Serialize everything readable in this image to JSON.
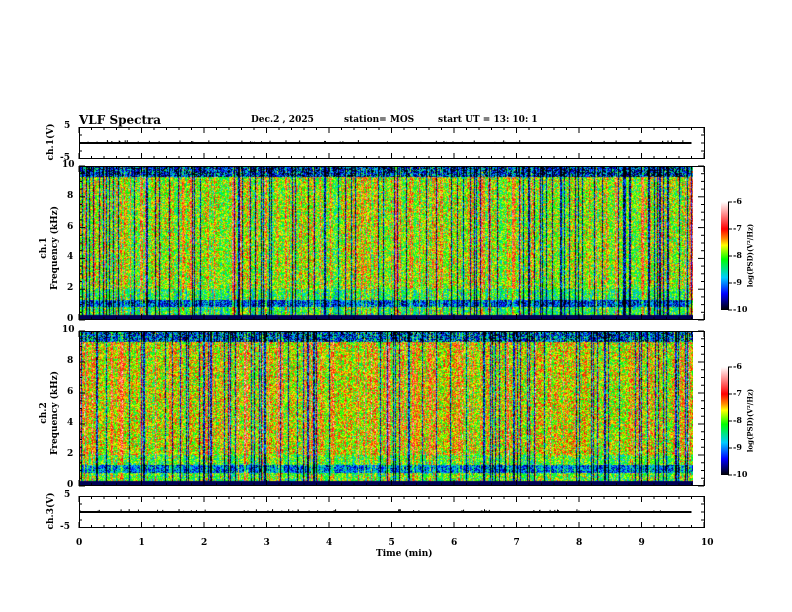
{
  "header": {
    "title": "VLF Spectra",
    "date": "Dec.2 , 2025",
    "station": "station= MOS",
    "start": "start  UT =   13: 10: 1"
  },
  "panels": {
    "ch1_wave": {
      "label": "ch.1(V)",
      "ticks": [
        "5",
        "-5"
      ]
    },
    "ch1_spec": {
      "label_ch": "ch.1",
      "label_axis": "Frequency (kHz)",
      "ticks": [
        "10",
        "8",
        "6",
        "4",
        "2",
        "0"
      ]
    },
    "ch2_spec": {
      "label_ch": "ch.2",
      "label_axis": "Frequency (kHz)",
      "ticks": [
        "10",
        "8",
        "6",
        "4",
        "2",
        "0"
      ]
    },
    "ch3_wave": {
      "label": "ch.3(V)",
      "ticks": [
        "5",
        "-5"
      ]
    }
  },
  "colorbar": {
    "label": "log(PSD)(V²/Hz)",
    "ticks": [
      "-6",
      "-7",
      "-8",
      "-9",
      "-10"
    ]
  },
  "xaxis": {
    "label": "Time (min)",
    "ticks": [
      "0",
      "1",
      "2",
      "3",
      "4",
      "5",
      "6",
      "7",
      "8",
      "9",
      "10"
    ]
  },
  "chart_data": {
    "type": "heatmap",
    "title": "VLF Spectra",
    "xlabel": "Time (min)",
    "xlim": [
      0,
      10
    ],
    "data_extent_x": [
      0,
      9.8
    ],
    "spectrograms": [
      {
        "channel": "ch.1",
        "ylabel": "Frequency (kHz)",
        "ylim": [
          0,
          10
        ],
        "zlabel": "log(PSD)(V²/Hz)",
        "zlim": [
          -10,
          -6
        ]
      },
      {
        "channel": "ch.2",
        "ylabel": "Frequency (kHz)",
        "ylim": [
          0,
          10
        ],
        "zlabel": "log(PSD)(V²/Hz)",
        "zlim": [
          -10,
          -6
        ]
      }
    ],
    "waveforms": [
      {
        "channel": "ch.1(V)",
        "ylim": [
          -5,
          5
        ],
        "level": 0
      },
      {
        "channel": "ch.3(V)",
        "ylim": [
          -5,
          5
        ],
        "level": 0
      }
    ]
  }
}
